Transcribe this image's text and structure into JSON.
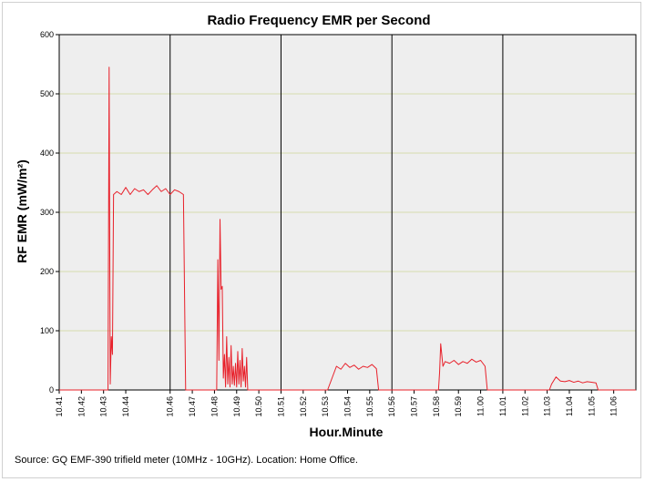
{
  "chart_data": {
    "type": "line",
    "title": "Radio Frequency EMR per Second",
    "xlabel": "Hour.Minute",
    "ylabel": "RF EMR (mW/m²)",
    "ylim": [
      0,
      600
    ],
    "yticks": [
      0,
      100,
      200,
      300,
      400,
      500,
      600
    ],
    "xlim": [
      10.41,
      11.07
    ],
    "categories": [
      "10.41",
      "10.42",
      "10.43",
      "10.44",
      "10.46",
      "10.47",
      "10.48",
      "10.49",
      "10.50",
      "10.51",
      "10.52",
      "10.53",
      "10.54",
      "10.55",
      "10.56",
      "10.57",
      "10.58",
      "10.59",
      "11.00",
      "11.01",
      "11.02",
      "11.03",
      "11.04",
      "11.05",
      "11.06"
    ],
    "separators": [
      "10.46",
      "10.51",
      "10.56",
      "11.01"
    ],
    "grid": true,
    "legend": "none",
    "series": [
      {
        "color": "#e8202a",
        "points": [
          [
            10.41,
            0
          ],
          [
            10.43,
            0
          ],
          [
            10.432,
            0
          ],
          [
            10.4325,
            545
          ],
          [
            10.433,
            10
          ],
          [
            10.4335,
            90
          ],
          [
            10.434,
            60
          ],
          [
            10.4345,
            330
          ],
          [
            10.436,
            335
          ],
          [
            10.438,
            330
          ],
          [
            10.44,
            342
          ],
          [
            10.442,
            330
          ],
          [
            10.444,
            340
          ],
          [
            10.446,
            335
          ],
          [
            10.448,
            338
          ],
          [
            10.45,
            330
          ],
          [
            10.452,
            338
          ],
          [
            10.454,
            345
          ],
          [
            10.456,
            335
          ],
          [
            10.458,
            340
          ],
          [
            10.46,
            330
          ],
          [
            10.462,
            338
          ],
          [
            10.464,
            335
          ],
          [
            10.466,
            330
          ],
          [
            10.467,
            0
          ],
          [
            10.481,
            0
          ],
          [
            10.4815,
            220
          ],
          [
            10.482,
            50
          ],
          [
            10.4825,
            288
          ],
          [
            10.483,
            170
          ],
          [
            10.4835,
            175
          ],
          [
            10.484,
            20
          ],
          [
            10.4845,
            60
          ],
          [
            10.485,
            5
          ],
          [
            10.4855,
            90
          ],
          [
            10.486,
            10
          ],
          [
            10.4865,
            55
          ],
          [
            10.487,
            5
          ],
          [
            10.4875,
            75
          ],
          [
            10.488,
            10
          ],
          [
            10.4885,
            40
          ],
          [
            10.489,
            8
          ],
          [
            10.4895,
            45
          ],
          [
            10.49,
            5
          ],
          [
            10.4905,
            65
          ],
          [
            10.491,
            10
          ],
          [
            10.4915,
            50
          ],
          [
            10.492,
            5
          ],
          [
            10.4925,
            70
          ],
          [
            10.493,
            15
          ],
          [
            10.4935,
            40
          ],
          [
            10.494,
            5
          ],
          [
            10.4945,
            55
          ],
          [
            10.495,
            0
          ],
          [
            10.531,
            0
          ],
          [
            10.533,
            20
          ],
          [
            10.535,
            40
          ],
          [
            10.537,
            35
          ],
          [
            10.539,
            45
          ],
          [
            10.541,
            38
          ],
          [
            10.543,
            42
          ],
          [
            10.545,
            35
          ],
          [
            10.547,
            40
          ],
          [
            10.549,
            38
          ],
          [
            10.551,
            43
          ],
          [
            10.553,
            36
          ],
          [
            10.554,
            0
          ],
          [
            10.581,
            0
          ],
          [
            10.5815,
            30
          ],
          [
            10.582,
            78
          ],
          [
            10.583,
            40
          ],
          [
            10.584,
            48
          ],
          [
            10.586,
            45
          ],
          [
            10.588,
            50
          ],
          [
            10.59,
            43
          ],
          [
            10.592,
            48
          ],
          [
            10.594,
            45
          ],
          [
            10.596,
            52
          ],
          [
            10.598,
            47
          ],
          [
            10.6,
            50
          ],
          [
            10.602,
            40
          ],
          [
            10.603,
            0
          ],
          [
            11.031,
            0
          ],
          [
            11.032,
            10
          ],
          [
            11.034,
            22
          ],
          [
            11.036,
            15
          ],
          [
            11.038,
            14
          ],
          [
            11.04,
            16
          ],
          [
            11.042,
            13
          ],
          [
            11.044,
            15
          ],
          [
            11.046,
            12
          ],
          [
            11.048,
            14
          ],
          [
            11.05,
            13
          ],
          [
            11.052,
            12
          ],
          [
            11.053,
            0
          ],
          [
            11.07,
            0
          ]
        ]
      }
    ]
  },
  "footer": {
    "source": "Source: GQ EMF-390 trifield meter (10MHz - 10GHz). Location: Home Office."
  },
  "colors": {
    "plot_background": "#eeeeee",
    "grid": "#d6dcae",
    "series": "#e8202a"
  }
}
